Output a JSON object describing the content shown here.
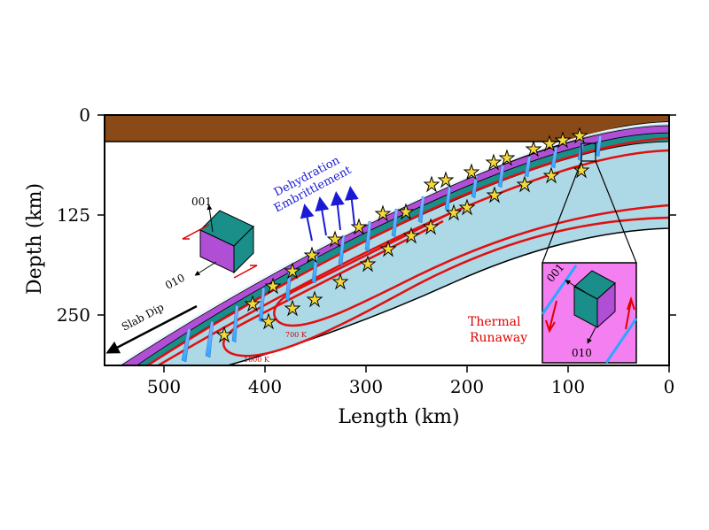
{
  "figure": {
    "y_axis_label": "Depth (km)",
    "x_axis_label": "Length (km)",
    "y_ticks": [
      "0",
      "125",
      "250"
    ],
    "x_ticks": [
      "500",
      "400",
      "300",
      "200",
      "100",
      "0"
    ]
  },
  "annotations": {
    "dehydration_line1": "Dehydration",
    "dehydration_line2": "Embrittlement",
    "slab_dip": "Slab Dip",
    "thermal_line1": "Thermal",
    "thermal_line2": "Runaway",
    "isotherm_700": "700 K",
    "isotherm_1000": "1000 K"
  },
  "crystal_main": {
    "axis_001": "001",
    "axis_010": "010"
  },
  "crystal_inset": {
    "axis_001": "001",
    "axis_010": "010"
  },
  "colors": {
    "crust": "#8a4a17",
    "mantle": "#add8e6",
    "slab_purple": "#b04fd6",
    "slab_teal": "#1a8f8a",
    "isotherm": "#e01010",
    "inset_bg": "#f47ff0",
    "star": "#f5d93a",
    "arrow_blue": "#1a1ad6"
  }
}
